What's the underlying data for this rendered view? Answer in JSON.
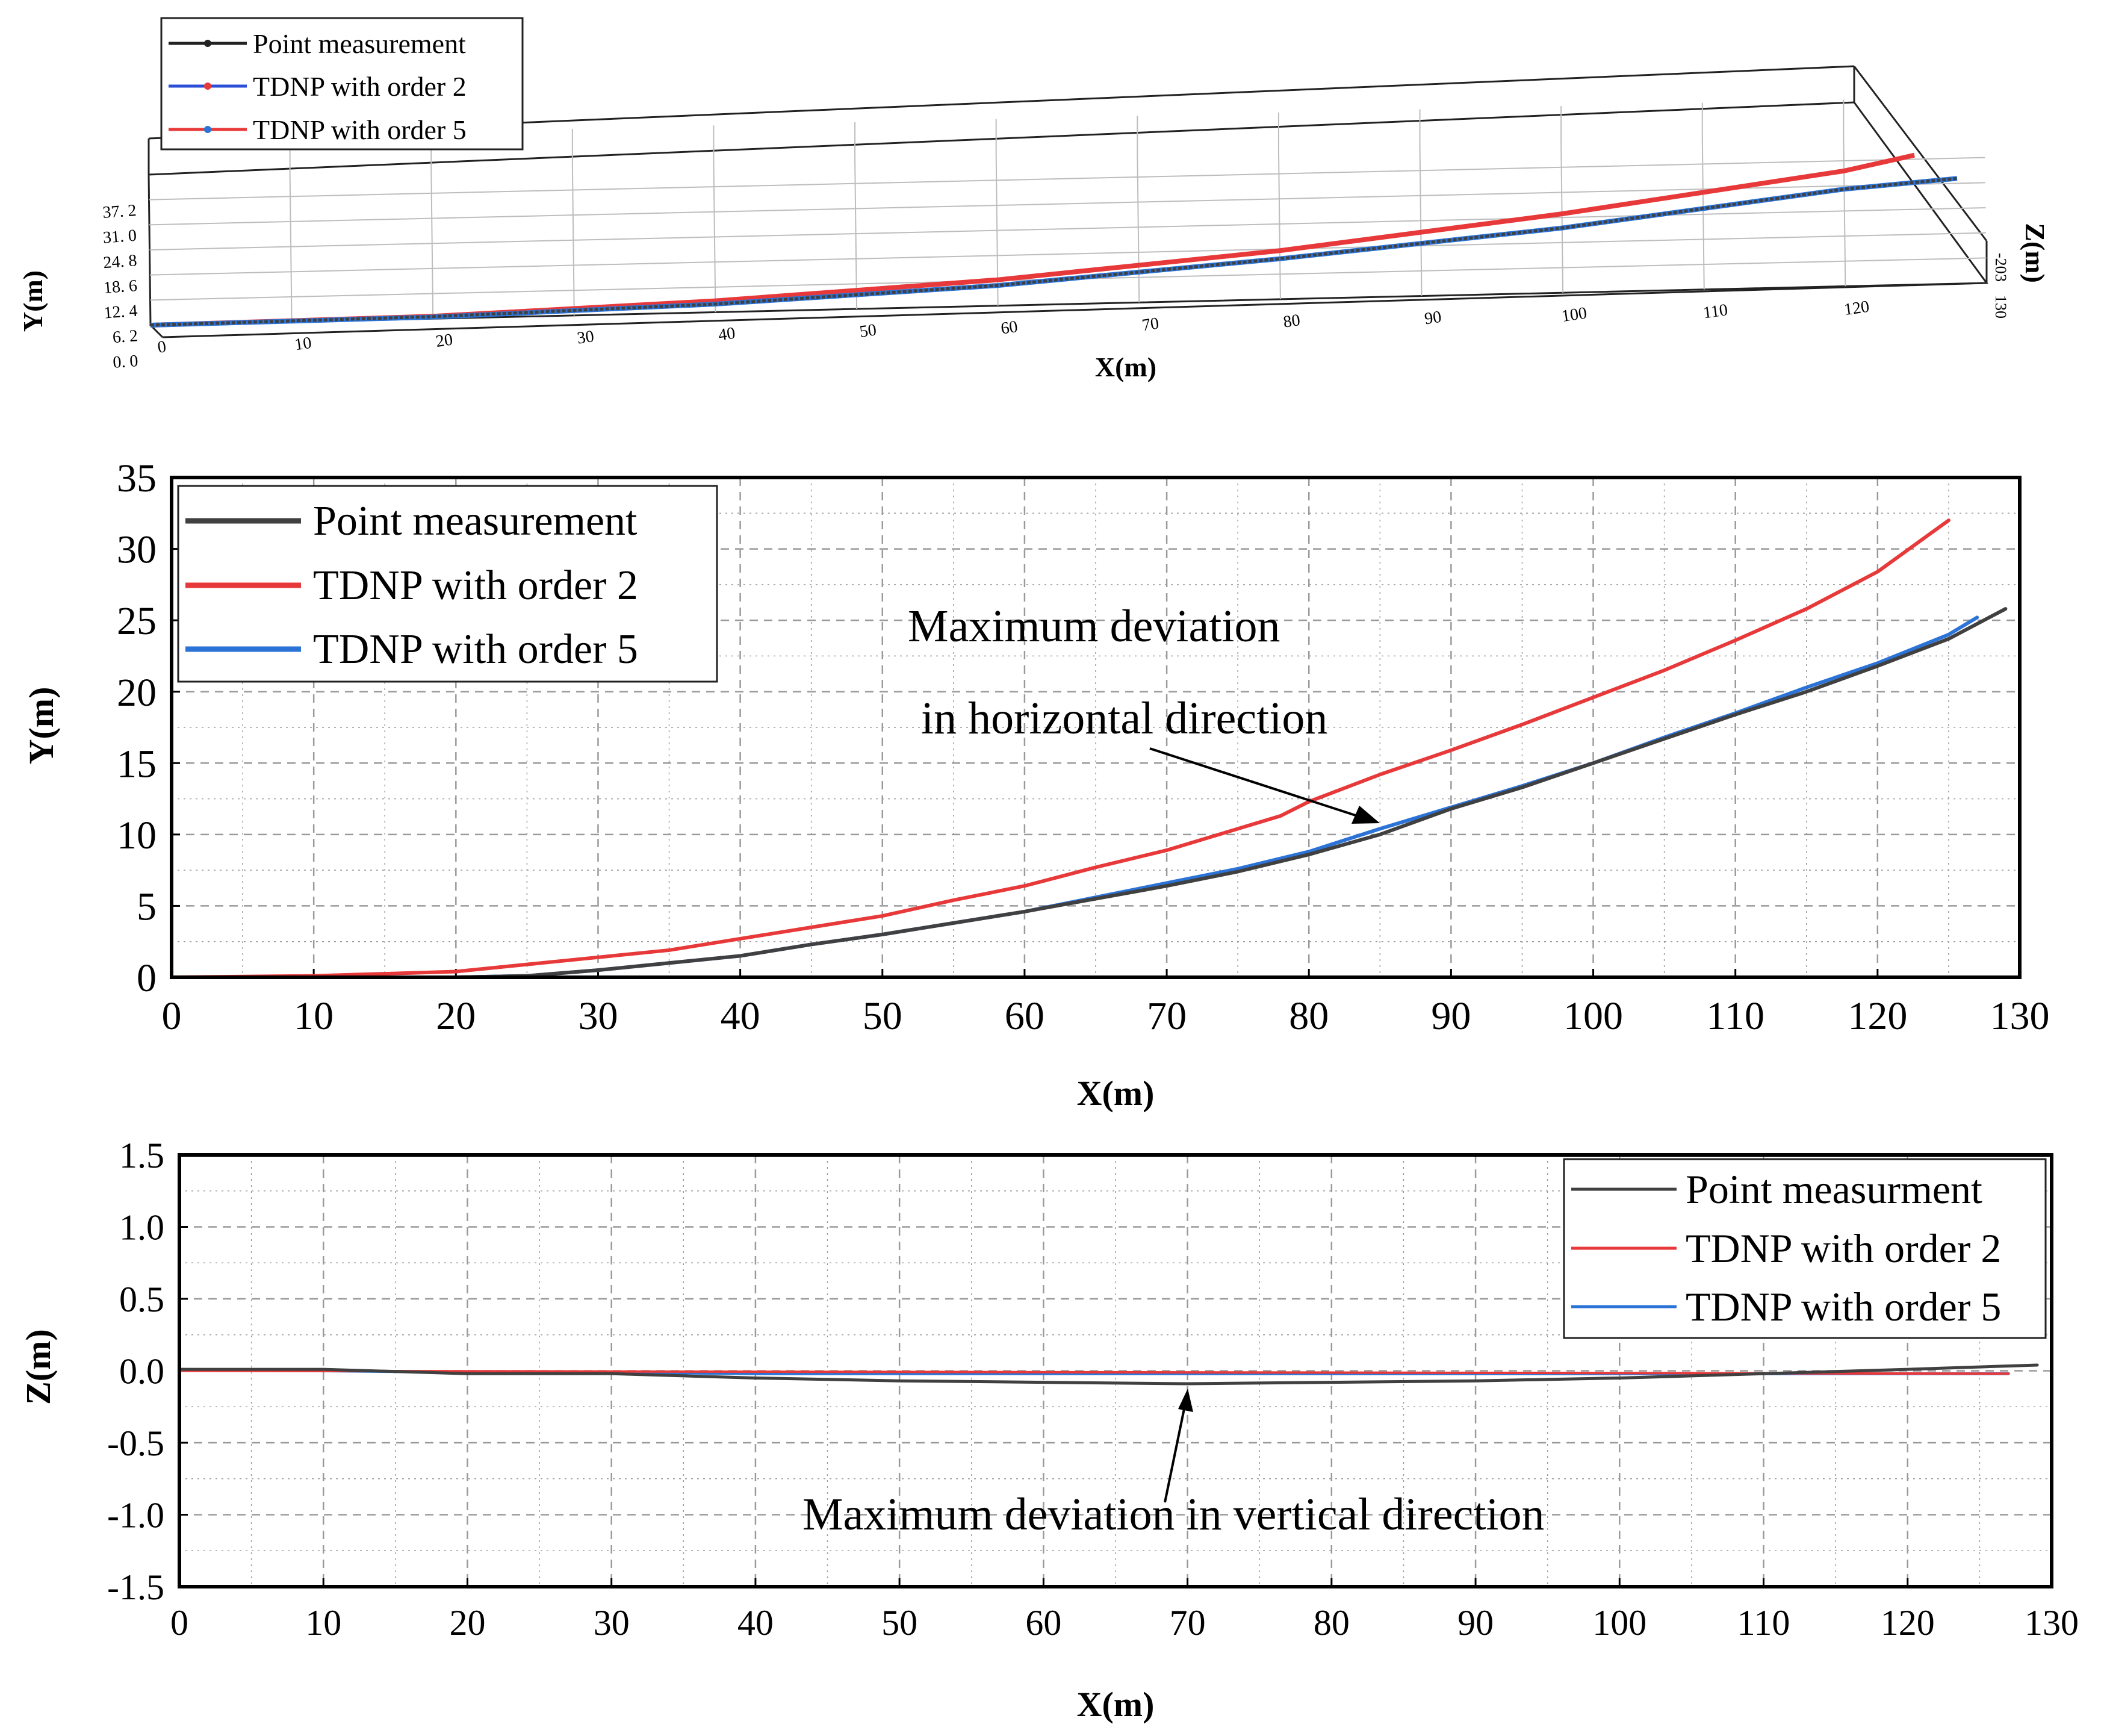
{
  "colors": {
    "point": "#404040",
    "order2": "#e8393a",
    "order5": "#2b73d6",
    "grid": "#9a9a9a"
  },
  "chart_data": [
    {
      "type": "line",
      "subtype": "3d-line",
      "xlabel": "X(m)",
      "ylabel": "Y(m)",
      "zlabel": "Z(m)",
      "xlim": [
        0,
        130
      ],
      "ylim": [
        0,
        37.2
      ],
      "xticks": [
        "0",
        "10",
        "20",
        "30",
        "40",
        "50",
        "60",
        "70",
        "80",
        "90",
        "100",
        "110",
        "120"
      ],
      "yticks": [
        "0. 0",
        "6. 2",
        "12. 4",
        "18. 6",
        "24. 8",
        "31. 0",
        "37. 2"
      ],
      "zticks": [
        "-20",
        "3",
        "130"
      ],
      "legend": [
        "Point measurement",
        "TDNP with order 2",
        "TDNP with order 5"
      ],
      "legend_position": "top-left",
      "series": [
        {
          "name": "Point measurement",
          "x": [
            0,
            20,
            40,
            60,
            80,
            100,
            120,
            128
          ],
          "y": [
            0,
            0.5,
            2,
            5,
            10,
            16,
            24,
            26
          ]
        },
        {
          "name": "TDNP with order 2",
          "x": [
            0,
            20,
            40,
            60,
            80,
            100,
            120,
            125
          ],
          "y": [
            0,
            0.6,
            2.8,
            6.4,
            12,
            19.5,
            28.5,
            32
          ]
        },
        {
          "name": "TDNP with order 5",
          "x": [
            0,
            20,
            40,
            60,
            80,
            100,
            120,
            128
          ],
          "y": [
            0,
            0.4,
            2,
            5,
            10,
            16,
            24,
            26
          ]
        }
      ]
    },
    {
      "type": "line",
      "xlabel": "X(m)",
      "ylabel": "Y(m)",
      "xlim": [
        0,
        130
      ],
      "ylim": [
        0,
        35
      ],
      "xticks": [
        "0",
        "10",
        "20",
        "30",
        "40",
        "50",
        "60",
        "70",
        "80",
        "90",
        "100",
        "110",
        "120",
        "130"
      ],
      "yticks": [
        "0",
        "5",
        "10",
        "15",
        "20",
        "25",
        "30",
        "35"
      ],
      "legend": [
        "Point measurement",
        "TDNP with order 2",
        "TDNP with order 5"
      ],
      "legend_position": "top-left",
      "annotation": [
        "Maximum deviation",
        "in horizontal direction"
      ],
      "annotation_target": {
        "x": 85,
        "y": 10.5
      },
      "series": [
        {
          "name": "Point measurement",
          "x": [
            0,
            10,
            20,
            25,
            30,
            35,
            40,
            45,
            50,
            55,
            60,
            65,
            70,
            75,
            80,
            85,
            90,
            95,
            100,
            105,
            110,
            115,
            120,
            125,
            129
          ],
          "y": [
            0,
            0,
            0,
            0.1,
            0.5,
            1.0,
            1.5,
            2.3,
            3.0,
            3.8,
            4.6,
            5.5,
            6.4,
            7.4,
            8.6,
            10.0,
            11.8,
            13.3,
            15.0,
            16.7,
            18.4,
            20.0,
            21.8,
            23.7,
            25.8
          ]
        },
        {
          "name": "TDNP with order 2",
          "x": [
            0,
            10,
            20,
            25,
            30,
            35,
            40,
            45,
            50,
            55,
            60,
            65,
            70,
            75,
            78,
            80,
            85,
            90,
            95,
            100,
            105,
            110,
            115,
            120,
            125
          ],
          "y": [
            0,
            0.1,
            0.4,
            0.9,
            1.4,
            1.9,
            2.7,
            3.5,
            4.3,
            5.4,
            6.4,
            7.7,
            8.9,
            10.4,
            11.3,
            12.3,
            14.2,
            15.9,
            17.7,
            19.6,
            21.5,
            23.6,
            25.8,
            28.4,
            32.0
          ]
        },
        {
          "name": "TDNP with order 5",
          "x": [
            0,
            10,
            20,
            25,
            30,
            35,
            40,
            45,
            50,
            55,
            60,
            65,
            70,
            75,
            80,
            85,
            90,
            95,
            100,
            105,
            110,
            115,
            120,
            125,
            127
          ],
          "y": [
            0,
            0,
            0,
            0.1,
            0.5,
            1.0,
            1.5,
            2.3,
            3.0,
            3.8,
            4.6,
            5.6,
            6.6,
            7.6,
            8.8,
            10.4,
            11.9,
            13.4,
            15.0,
            16.8,
            18.5,
            20.3,
            22.0,
            24.0,
            25.2
          ]
        }
      ]
    },
    {
      "type": "line",
      "xlabel": "X(m)",
      "ylabel": "Z(m)",
      "xlim": [
        0,
        130
      ],
      "ylim": [
        -1.5,
        1.5
      ],
      "xticks": [
        "0",
        "10",
        "20",
        "30",
        "40",
        "50",
        "60",
        "70",
        "80",
        "90",
        "100",
        "110",
        "120",
        "130"
      ],
      "yticks": [
        "-1.5",
        "-1.0",
        "-0.5",
        "0.0",
        "0.5",
        "1.0",
        "1.5"
      ],
      "legend": [
        "Point measurment",
        "TDNP with order 2",
        "TDNP with order 5"
      ],
      "legend_position": "top-right",
      "annotation": [
        "Maximum deviation in vertical direction"
      ],
      "annotation_target": {
        "x": 69,
        "y": -0.12
      },
      "series": [
        {
          "name": "Point measurment",
          "x": [
            0,
            10,
            20,
            30,
            40,
            50,
            60,
            70,
            80,
            90,
            100,
            110,
            120,
            129
          ],
          "y": [
            0.01,
            0.01,
            -0.02,
            -0.02,
            -0.05,
            -0.07,
            -0.08,
            -0.09,
            -0.08,
            -0.07,
            -0.05,
            -0.02,
            0.01,
            0.04
          ]
        },
        {
          "name": "TDNP with order 2",
          "x": [
            0,
            127
          ],
          "y": [
            0,
            -0.02
          ]
        },
        {
          "name": "TDNP with order 5",
          "x": [
            0,
            10,
            20,
            30,
            40,
            50,
            60,
            70,
            80,
            90,
            100,
            110,
            120,
            127
          ],
          "y": [
            0.01,
            0.0,
            -0.01,
            -0.01,
            -0.02,
            -0.02,
            -0.02,
            -0.02,
            -0.02,
            -0.02,
            -0.02,
            -0.02,
            -0.02,
            -0.02
          ]
        }
      ]
    }
  ]
}
